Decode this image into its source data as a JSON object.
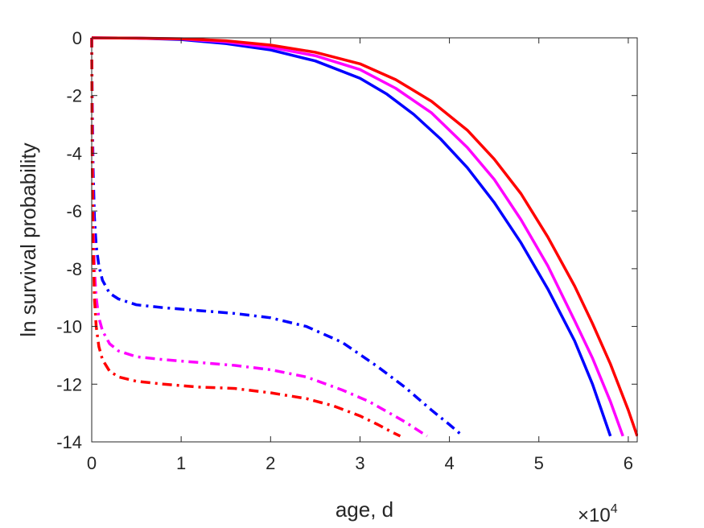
{
  "chart_data": {
    "type": "line",
    "title": "",
    "xlabel": "age, d",
    "ylabel": "ln survival probability",
    "x_exponent_label": "×10",
    "x_exponent_power": "4",
    "xlim": [
      0,
      61000
    ],
    "ylim": [
      -14,
      0
    ],
    "x_ticks": [
      0,
      10000,
      20000,
      30000,
      40000,
      50000,
      60000
    ],
    "x_tick_labels": [
      "0",
      "1",
      "2",
      "3",
      "4",
      "5",
      "6"
    ],
    "y_ticks": [
      0,
      -2,
      -4,
      -6,
      -8,
      -10,
      -12,
      -14
    ],
    "y_tick_labels": [
      "0",
      "-2",
      "-4",
      "-6",
      "-8",
      "-10",
      "-12",
      "-14"
    ],
    "grid": false,
    "legend": "none",
    "series": [
      {
        "color": "#0000ff",
        "style": "solid",
        "x": [
          0,
          5000,
          10000,
          15000,
          20000,
          25000,
          30000,
          33000,
          36000,
          39000,
          42000,
          45000,
          48000,
          51000,
          54000,
          56000,
          58000
        ],
        "y": [
          0,
          -0.01,
          -0.06,
          -0.2,
          -0.42,
          -0.8,
          -1.4,
          -1.95,
          -2.65,
          -3.5,
          -4.5,
          -5.7,
          -7.1,
          -8.7,
          -10.5,
          -12.0,
          -13.8
        ]
      },
      {
        "color": "#ff00ff",
        "style": "solid",
        "x": [
          0,
          5000,
          10000,
          15000,
          20000,
          25000,
          30000,
          34000,
          38000,
          42000,
          45000,
          48000,
          51000,
          54000,
          56000,
          58000,
          59400
        ],
        "y": [
          0,
          -0.01,
          -0.04,
          -0.14,
          -0.33,
          -0.62,
          -1.1,
          -1.75,
          -2.6,
          -3.8,
          -4.9,
          -6.3,
          -7.9,
          -9.8,
          -11.1,
          -12.6,
          -13.8
        ]
      },
      {
        "color": "#ff0000",
        "style": "solid",
        "x": [
          0,
          5000,
          10000,
          15000,
          20000,
          25000,
          30000,
          34000,
          38000,
          42000,
          45000,
          48000,
          51000,
          54000,
          56000,
          58000,
          60000,
          61000
        ],
        "y": [
          0,
          -0.01,
          -0.03,
          -0.1,
          -0.25,
          -0.5,
          -0.9,
          -1.45,
          -2.2,
          -3.2,
          -4.2,
          -5.4,
          -6.9,
          -8.6,
          -9.9,
          -11.3,
          -12.9,
          -13.8
        ]
      },
      {
        "color": "#0000ff",
        "style": "dashdot",
        "x": [
          0,
          50,
          150,
          300,
          500,
          800,
          1200,
          2000,
          3000,
          5000,
          8000,
          12000,
          16000,
          20000,
          24000,
          28000,
          32000,
          35000,
          38000,
          40000,
          41500
        ],
        "y": [
          0,
          -2.0,
          -4.5,
          -6.2,
          -7.2,
          -7.9,
          -8.4,
          -8.85,
          -9.05,
          -9.25,
          -9.35,
          -9.45,
          -9.55,
          -9.7,
          -10.0,
          -10.55,
          -11.4,
          -12.1,
          -12.9,
          -13.4,
          -13.8
        ]
      },
      {
        "color": "#ff00ff",
        "style": "dashdot",
        "x": [
          0,
          50,
          150,
          300,
          500,
          800,
          1200,
          2000,
          3000,
          5000,
          8000,
          12000,
          16000,
          20000,
          24000,
          28000,
          31000,
          33000,
          35000,
          36500,
          37500
        ],
        "y": [
          0,
          -3.0,
          -6.0,
          -8.0,
          -9.0,
          -9.7,
          -10.15,
          -10.6,
          -10.85,
          -11.05,
          -11.15,
          -11.25,
          -11.35,
          -11.5,
          -11.75,
          -12.2,
          -12.6,
          -12.95,
          -13.3,
          -13.6,
          -13.8
        ]
      },
      {
        "color": "#ff0000",
        "style": "dashdot",
        "x": [
          0,
          50,
          150,
          300,
          500,
          800,
          1200,
          2000,
          3000,
          5000,
          8000,
          12000,
          16000,
          20000,
          24000,
          27000,
          30000,
          32000,
          33500,
          34500
        ],
        "y": [
          0,
          -4.0,
          -7.0,
          -9.0,
          -10.0,
          -10.7,
          -11.15,
          -11.55,
          -11.75,
          -11.9,
          -12.0,
          -12.1,
          -12.15,
          -12.3,
          -12.5,
          -12.75,
          -13.1,
          -13.4,
          -13.65,
          -13.8
        ]
      }
    ]
  }
}
